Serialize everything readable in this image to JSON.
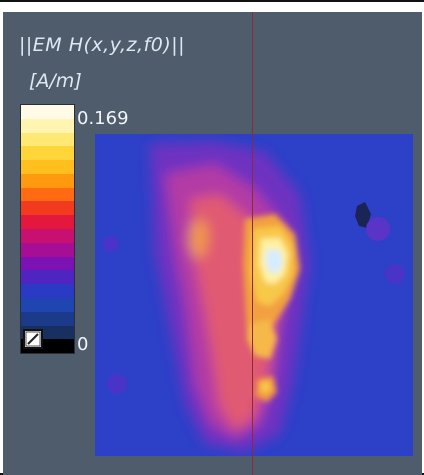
{
  "title": "||EM H(x,y,z,f0)||",
  "unit": "[A/m]",
  "colorbar": {
    "max_label": "0.169",
    "min_label": "0",
    "colors": [
      "#fffbe6",
      "#fff4b0",
      "#ffe873",
      "#ffd63a",
      "#ffbf1e",
      "#ff9a10",
      "#ff6a12",
      "#f23a1e",
      "#e4173e",
      "#c81070",
      "#a60e96",
      "#7d12b4",
      "#4f24c0",
      "#2b3ac4",
      "#1f46b0",
      "#1b3b8a",
      "#173060",
      "#000000"
    ]
  },
  "colors": {
    "background": "#4e5c6b",
    "probe_line": "#8a2a3a",
    "text": "#dfe8f2"
  },
  "field_map": {
    "description": "",
    "levels": [
      "#3344c8",
      "#4a34c8",
      "#7030c0",
      "#b03aa8",
      "#e05a70",
      "#f39a40",
      "#f8c848",
      "#fff1a0",
      "#cde8ff"
    ]
  }
}
